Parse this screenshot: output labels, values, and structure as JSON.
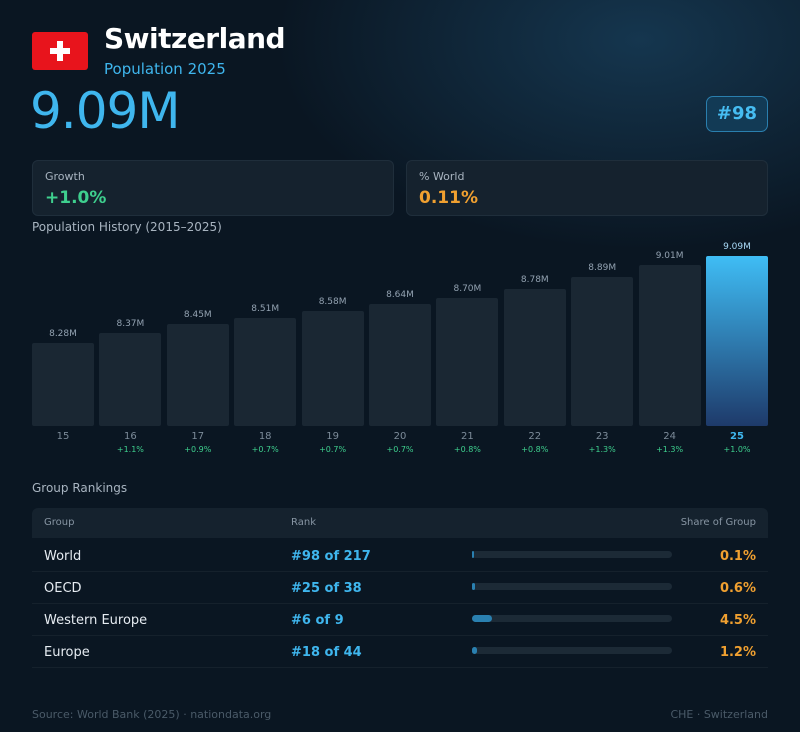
{
  "header": {
    "flag_icon": "swiss-flag-icon",
    "country": "Switzerland",
    "subtitle": "Population 2025",
    "population": "9.09M",
    "rank": "#98"
  },
  "cards": {
    "growth": {
      "label": "Growth",
      "value": "+1.0%",
      "color": "#3ecf8e"
    },
    "world": {
      "label": "% World",
      "value": "0.11%",
      "color": "#f0a030"
    }
  },
  "history_title": "Population History (2015–2025)",
  "chart_data": {
    "type": "bar",
    "categories": [
      "15",
      "16",
      "17",
      "18",
      "19",
      "20",
      "21",
      "22",
      "23",
      "24",
      "25"
    ],
    "values": [
      8.28,
      8.37,
      8.45,
      8.51,
      8.58,
      8.64,
      8.7,
      8.78,
      8.89,
      9.01,
      9.09
    ],
    "value_labels": [
      "8.28M",
      "8.37M",
      "8.45M",
      "8.51M",
      "8.58M",
      "8.64M",
      "8.70M",
      "8.78M",
      "8.89M",
      "9.01M",
      "9.09M"
    ],
    "growth_labels": [
      "",
      "+1.1%",
      "+0.9%",
      "+0.7%",
      "+0.7%",
      "+0.7%",
      "+0.8%",
      "+0.8%",
      "+1.3%",
      "+1.3%",
      "+1.0%"
    ],
    "highlight_index": 10,
    "title": "Population History (2015–2025)",
    "xlabel": "",
    "ylabel": ""
  },
  "group_rankings": {
    "title": "Group Rankings",
    "headers": {
      "group": "Group",
      "rank": "Rank",
      "share": "Share of Group"
    },
    "rows": [
      {
        "group": "World",
        "rank": "#98 of 217",
        "share": "0.1%",
        "share_value": 0.1
      },
      {
        "group": "OECD",
        "rank": "#25 of 38",
        "share": "0.6%",
        "share_value": 0.6
      },
      {
        "group": "Western Europe",
        "rank": "#6 of 9",
        "share": "4.5%",
        "share_value": 4.5
      },
      {
        "group": "Europe",
        "rank": "#18 of 44",
        "share": "1.2%",
        "share_value": 1.2
      }
    ]
  },
  "footer": {
    "source": "Source: World Bank (2025) · nationdata.org",
    "code": "CHE · Switzerland"
  }
}
